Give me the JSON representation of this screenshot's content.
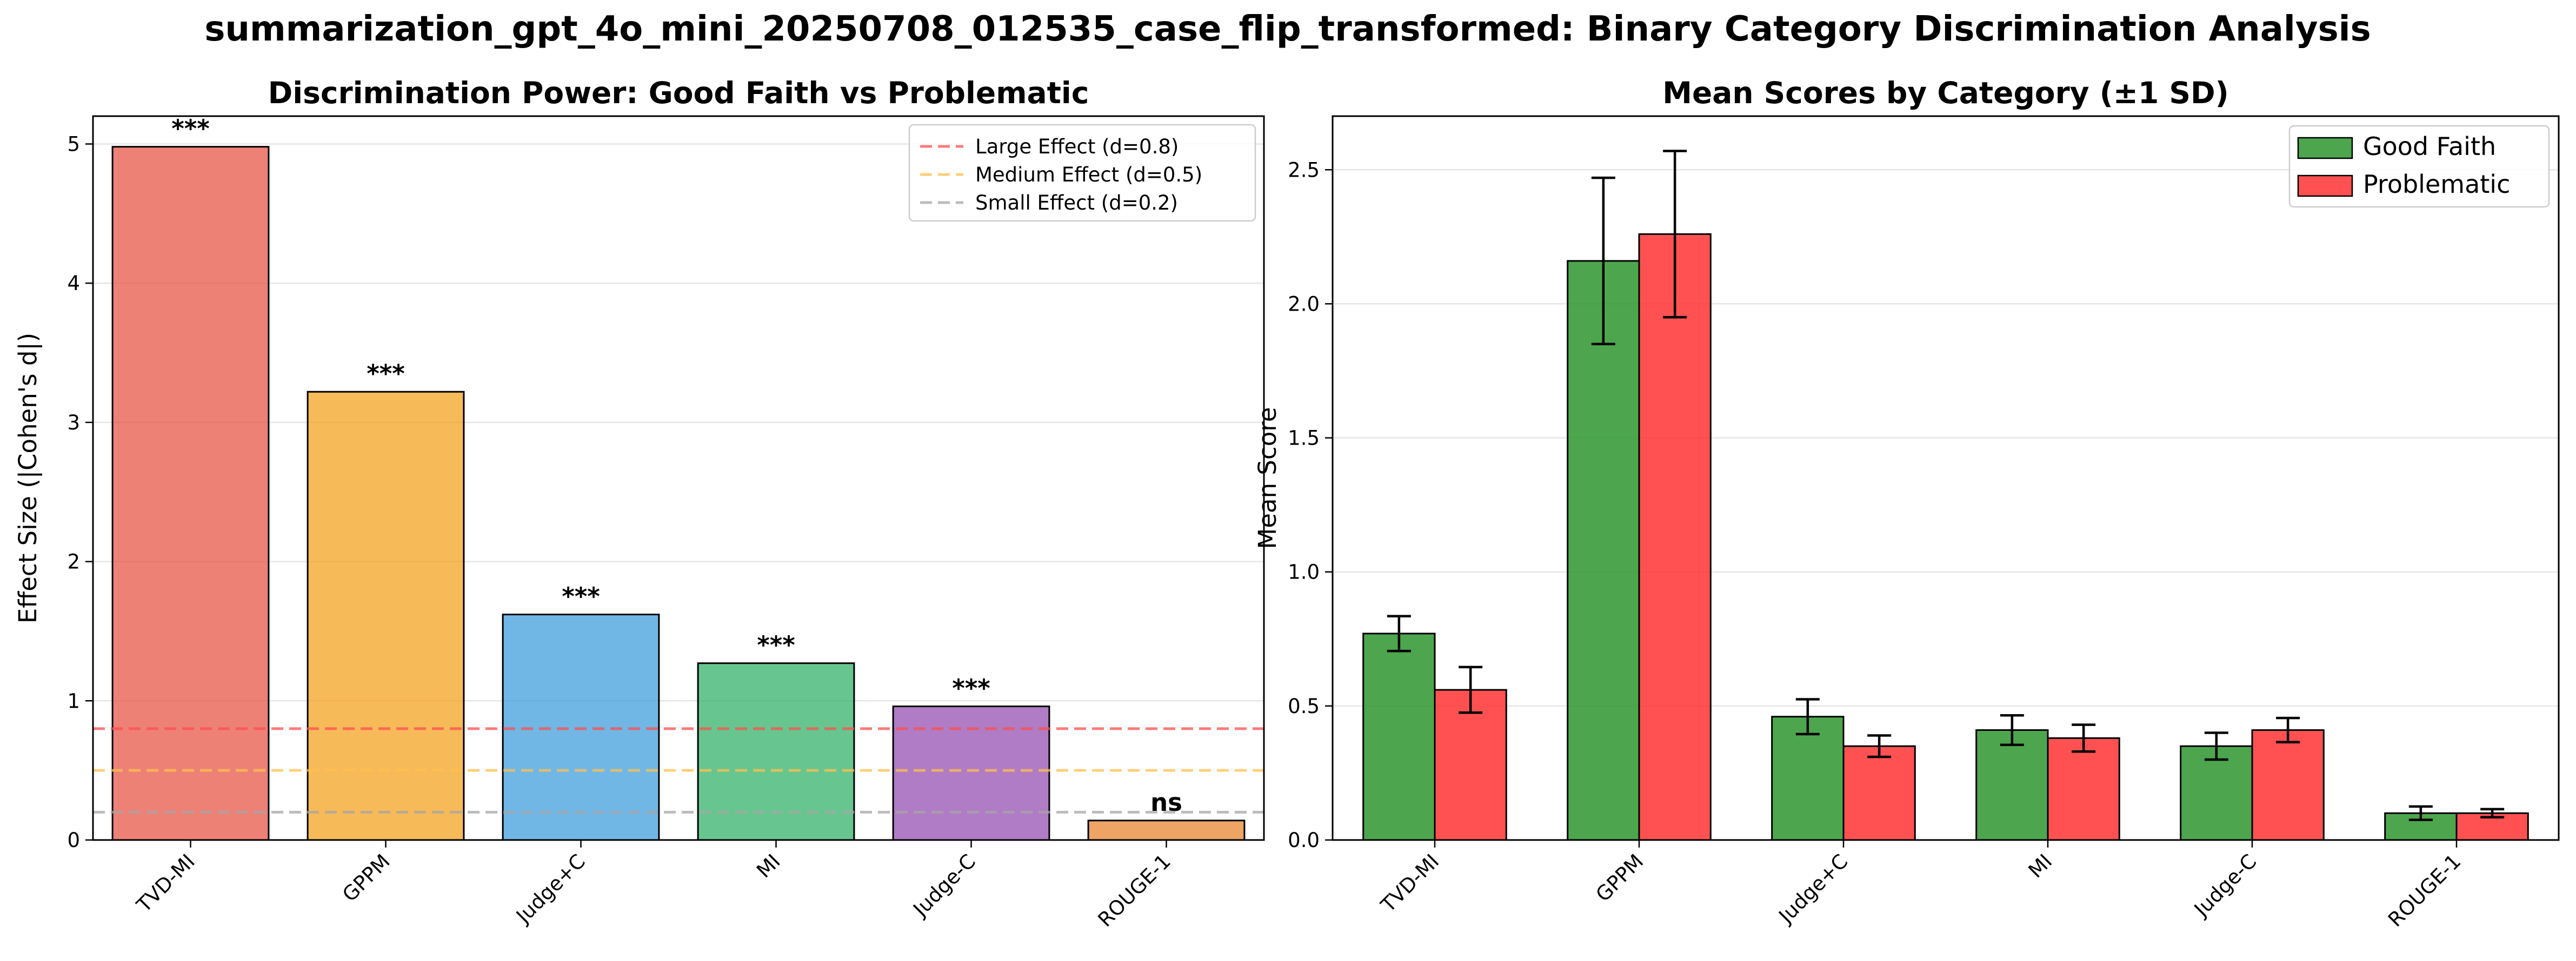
{
  "suptitle": "summarization_gpt_4o_mini_20250708_012535_case_flip_transformed: Binary Category Discrimination Analysis",
  "chart_data": [
    {
      "type": "bar",
      "title": "Discrimination Power: Good Faith vs Problematic",
      "xlabel": "",
      "ylabel": "Effect Size (|Cohen's d|)",
      "ylim": [
        0,
        5.2
      ],
      "yticks": [
        0,
        1,
        2,
        3,
        4,
        5
      ],
      "grid": "y",
      "categories": [
        "TVD-MI",
        "GPPM",
        "Judge+C",
        "MI",
        "Judge-C",
        "ROUGE-1"
      ],
      "values": [
        4.98,
        3.22,
        1.62,
        1.27,
        0.96,
        0.14
      ],
      "bar_colors": [
        "#e74c3c",
        "#f39c12",
        "#3498db",
        "#27ae60",
        "#8e44ad",
        "#e67e22"
      ],
      "significance": [
        "***",
        "***",
        "***",
        "***",
        "***",
        "ns"
      ],
      "reference_lines": [
        {
          "label": "Large Effect (d=0.8)",
          "value": 0.8,
          "color": "#ff4d4d"
        },
        {
          "label": "Medium Effect (d=0.5)",
          "value": 0.5,
          "color": "#ffc04d"
        },
        {
          "label": "Small Effect (d=0.2)",
          "value": 0.2,
          "color": "#a6a6a6"
        }
      ],
      "legend_position": "top-right"
    },
    {
      "type": "bar",
      "title": "Mean Scores by Category (±1 SD)",
      "xlabel": "",
      "ylabel": "Mean Score",
      "ylim": [
        0,
        2.7
      ],
      "yticks": [
        0.0,
        0.5,
        1.0,
        1.5,
        2.0,
        2.5
      ],
      "grid": "y",
      "categories": [
        "TVD-MI",
        "GPPM",
        "Judge+C",
        "MI",
        "Judge-C",
        "ROUGE-1"
      ],
      "series": [
        {
          "name": "Good Faith",
          "color": "#2e962e",
          "values": [
            0.77,
            2.16,
            0.46,
            0.41,
            0.35,
            0.1
          ],
          "sd": [
            0.065,
            0.31,
            0.065,
            0.055,
            0.05,
            0.025
          ]
        },
        {
          "name": "Problematic",
          "color": "#ff3333",
          "values": [
            0.56,
            2.26,
            0.35,
            0.38,
            0.41,
            0.1
          ],
          "sd": [
            0.085,
            0.31,
            0.04,
            0.05,
            0.045,
            0.015
          ]
        }
      ],
      "legend_position": "top-right"
    }
  ]
}
